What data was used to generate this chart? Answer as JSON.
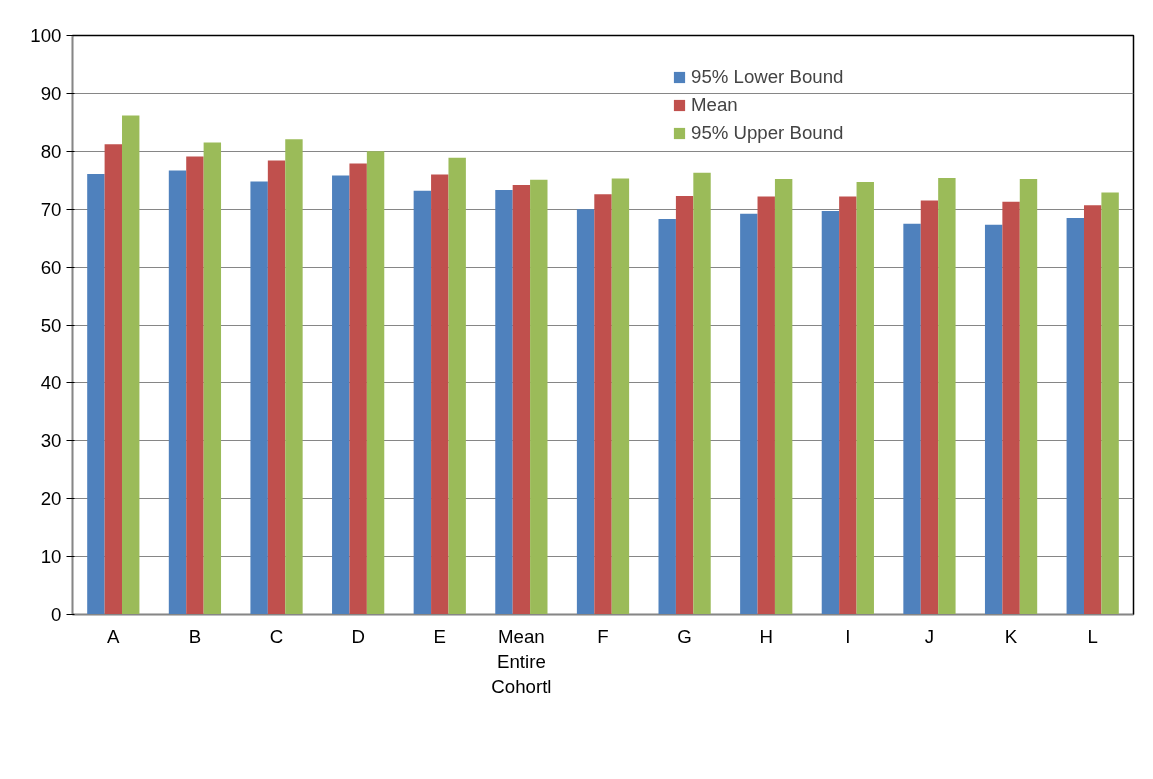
{
  "chart_data": {
    "type": "bar",
    "categories": [
      "A",
      "B",
      "C",
      "D",
      "E",
      "Mean\nEntire\nCohortl",
      "F",
      "G",
      "H",
      "I",
      "J",
      "K",
      "L"
    ],
    "series": [
      {
        "name": "95% Lower Bound",
        "color": "#4f81bd",
        "values": [
          76.1,
          76.7,
          74.8,
          75.8,
          73.2,
          73.3,
          70.0,
          68.3,
          69.2,
          69.7,
          67.5,
          67.3,
          68.5
        ]
      },
      {
        "name": "Mean",
        "color": "#c0504d",
        "values": [
          81.2,
          79.1,
          78.4,
          77.9,
          76.0,
          74.2,
          72.6,
          72.3,
          72.2,
          72.2,
          71.5,
          71.3,
          70.7
        ]
      },
      {
        "name": "95% Upper Bound",
        "color": "#9bbb59",
        "values": [
          86.2,
          81.5,
          82.1,
          80.0,
          78.9,
          75.1,
          75.3,
          76.3,
          75.2,
          74.7,
          75.4,
          75.2,
          72.9
        ]
      }
    ],
    "ylim": [
      0,
      100
    ],
    "yticks": [
      0,
      10,
      20,
      30,
      40,
      50,
      60,
      70,
      80,
      90,
      100
    ],
    "grid": "y",
    "legend": "top right"
  }
}
